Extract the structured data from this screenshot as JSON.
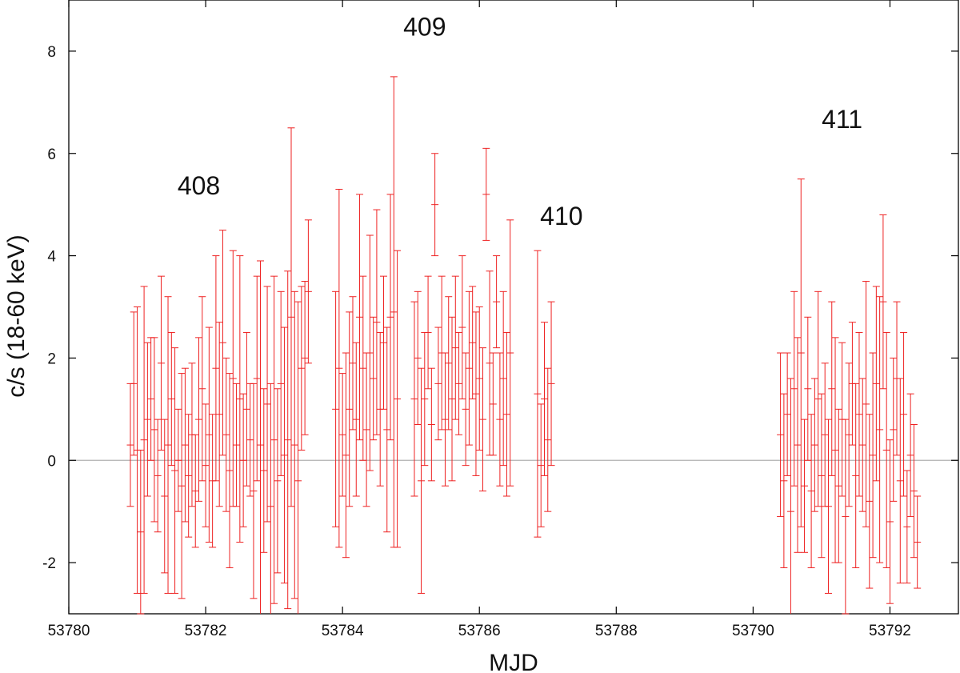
{
  "chart_data": {
    "type": "scatter",
    "xlabel": "MJD",
    "ylabel": "c/s (18-60 keV)",
    "xlim": [
      53780,
      53793
    ],
    "ylim": [
      -3,
      9
    ],
    "x_ticks": [
      "53780",
      "53782",
      "53784",
      "53786",
      "53788",
      "53790",
      "53792"
    ],
    "x_tick_values": [
      53780,
      53782,
      53784,
      53786,
      53788,
      53790,
      53792
    ],
    "y_ticks": [
      "-2",
      "0",
      "2",
      "4",
      "6",
      "8"
    ],
    "y_tick_values": [
      -2,
      0,
      2,
      4,
      6,
      8
    ],
    "reference_line_y": 0,
    "series_color": "#ee2222",
    "annotations": [
      {
        "text": "408",
        "x": 53781.9,
        "y": 5.2
      },
      {
        "text": "409",
        "x": 53785.2,
        "y": 8.3
      },
      {
        "text": "410",
        "x": 53787.2,
        "y": 4.6
      },
      {
        "text": "411",
        "x": 53791.3,
        "y": 6.5
      }
    ],
    "series": [
      {
        "points": [
          {
            "x": 53780.9,
            "y": 0.3,
            "err": 1.2
          },
          {
            "x": 53780.95,
            "y": 1.5,
            "err": 1.4
          },
          {
            "x": 53781.0,
            "y": 0.2,
            "err": 2.8
          },
          {
            "x": 53781.05,
            "y": -1.4,
            "err": 1.6
          },
          {
            "x": 53781.1,
            "y": 0.4,
            "err": 3.0
          },
          {
            "x": 53781.15,
            "y": 0.8,
            "err": 1.5
          },
          {
            "x": 53781.2,
            "y": 1.2,
            "err": 1.2
          },
          {
            "x": 53781.25,
            "y": 0.6,
            "err": 1.8
          },
          {
            "x": 53781.3,
            "y": -0.3,
            "err": 1.1
          },
          {
            "x": 53781.35,
            "y": 1.9,
            "err": 1.7
          },
          {
            "x": 53781.4,
            "y": -0.7,
            "err": 1.5
          },
          {
            "x": 53781.45,
            "y": 0.3,
            "err": 2.9
          },
          {
            "x": 53781.5,
            "y": 1.2,
            "err": 1.3
          },
          {
            "x": 53781.55,
            "y": -0.2,
            "err": 2.4
          },
          {
            "x": 53781.6,
            "y": 0.0,
            "err": 1.0
          },
          {
            "x": 53781.65,
            "y": -0.5,
            "err": 2.2
          },
          {
            "x": 53781.7,
            "y": 0.3,
            "err": 1.5
          },
          {
            "x": 53781.75,
            "y": -0.3,
            "err": 1.2
          },
          {
            "x": 53781.8,
            "y": 0.5,
            "err": 1.4
          },
          {
            "x": 53781.85,
            "y": -0.6,
            "err": 1.1
          },
          {
            "x": 53781.9,
            "y": 0.8,
            "err": 1.6
          },
          {
            "x": 53781.95,
            "y": 1.4,
            "err": 1.8
          },
          {
            "x": 53782.0,
            "y": -0.1,
            "err": 1.2
          },
          {
            "x": 53782.05,
            "y": 0.5,
            "err": 2.1
          },
          {
            "x": 53782.1,
            "y": -0.4,
            "err": 1.3
          },
          {
            "x": 53782.15,
            "y": 1.8,
            "err": 2.2
          },
          {
            "x": 53782.2,
            "y": 0.9,
            "err": 1.8
          },
          {
            "x": 53782.25,
            "y": 2.3,
            "err": 2.2
          },
          {
            "x": 53782.3,
            "y": 0.5,
            "err": 1.5
          },
          {
            "x": 53782.35,
            "y": -0.2,
            "err": 1.9
          },
          {
            "x": 53782.4,
            "y": 1.6,
            "err": 2.5
          },
          {
            "x": 53782.45,
            "y": 0.3,
            "err": 1.2
          },
          {
            "x": 53782.5,
            "y": 1.2,
            "err": 2.8
          },
          {
            "x": 53782.55,
            "y": 0.0,
            "err": 1.3
          },
          {
            "x": 53782.6,
            "y": 1.0,
            "err": 1.5
          },
          {
            "x": 53782.65,
            "y": 0.4,
            "err": 1.1
          },
          {
            "x": 53782.7,
            "y": -0.6,
            "err": 2.1
          },
          {
            "x": 53782.75,
            "y": 1.6,
            "err": 2.0
          },
          {
            "x": 53782.8,
            "y": 0.3,
            "err": 3.6
          },
          {
            "x": 53782.85,
            "y": -0.2,
            "err": 1.6
          },
          {
            "x": 53782.9,
            "y": 1.1,
            "err": 2.3
          },
          {
            "x": 53782.95,
            "y": -0.9,
            "err": 2.4
          },
          {
            "x": 53783.0,
            "y": 0.4,
            "err": 3.2
          },
          {
            "x": 53783.05,
            "y": -0.4,
            "err": 1.8
          },
          {
            "x": 53783.1,
            "y": 1.5,
            "err": 1.8
          },
          {
            "x": 53783.15,
            "y": 0.1,
            "err": 2.5
          },
          {
            "x": 53783.2,
            "y": 0.4,
            "err": 3.3
          },
          {
            "x": 53783.25,
            "y": 2.8,
            "err": 3.7
          },
          {
            "x": 53783.3,
            "y": 0.3,
            "err": 3.0
          },
          {
            "x": 53783.35,
            "y": -0.4,
            "err": 3.5
          },
          {
            "x": 53783.4,
            "y": 1.8,
            "err": 1.6
          },
          {
            "x": 53783.45,
            "y": 2.0,
            "err": 1.5
          },
          {
            "x": 53783.5,
            "y": 3.3,
            "err": 1.4
          },
          {
            "x": 53783.9,
            "y": 1.0,
            "err": 2.3
          },
          {
            "x": 53783.95,
            "y": 1.8,
            "err": 3.5
          },
          {
            "x": 53784.0,
            "y": 0.5,
            "err": 1.2
          },
          {
            "x": 53784.05,
            "y": 0.1,
            "err": 2.0
          },
          {
            "x": 53784.1,
            "y": 1.0,
            "err": 1.9
          },
          {
            "x": 53784.15,
            "y": 1.9,
            "err": 1.3
          },
          {
            "x": 53784.2,
            "y": 0.8,
            "err": 1.5
          },
          {
            "x": 53784.25,
            "y": 2.8,
            "err": 2.4
          },
          {
            "x": 53784.3,
            "y": 1.8,
            "err": 1.8
          },
          {
            "x": 53784.35,
            "y": 0.6,
            "err": 1.5
          },
          {
            "x": 53784.4,
            "y": 2.1,
            "err": 2.3
          },
          {
            "x": 53784.45,
            "y": 1.6,
            "err": 1.2
          },
          {
            "x": 53784.5,
            "y": 2.7,
            "err": 2.2
          },
          {
            "x": 53784.55,
            "y": 1.0,
            "err": 1.5
          },
          {
            "x": 53784.6,
            "y": 2.3,
            "err": 1.3
          },
          {
            "x": 53784.65,
            "y": 0.6,
            "err": 2.0
          },
          {
            "x": 53784.7,
            "y": 2.8,
            "err": 2.4
          },
          {
            "x": 53784.75,
            "y": 2.9,
            "err": 4.6
          },
          {
            "x": 53784.8,
            "y": 1.2,
            "err": 2.9
          },
          {
            "x": 53785.05,
            "y": 1.2,
            "err": 1.9
          },
          {
            "x": 53785.1,
            "y": 2.0,
            "err": 1.3
          },
          {
            "x": 53785.15,
            "y": -0.4,
            "err": 2.2
          },
          {
            "x": 53785.2,
            "y": 1.2,
            "err": 1.3
          },
          {
            "x": 53785.25,
            "y": 2.5,
            "err": 1.1
          },
          {
            "x": 53785.3,
            "y": 0.7,
            "err": 1.1
          },
          {
            "x": 53785.35,
            "y": 5.0,
            "err": 1.0
          },
          {
            "x": 53785.4,
            "y": 1.5,
            "err": 1.1
          },
          {
            "x": 53785.45,
            "y": 2.1,
            "err": 1.5
          },
          {
            "x": 53785.5,
            "y": 0.8,
            "err": 1.3
          },
          {
            "x": 53785.55,
            "y": 1.9,
            "err": 1.3
          },
          {
            "x": 53785.6,
            "y": 1.2,
            "err": 1.6
          },
          {
            "x": 53785.65,
            "y": 2.2,
            "err": 1.4
          },
          {
            "x": 53785.7,
            "y": 1.5,
            "err": 1.0
          },
          {
            "x": 53785.75,
            "y": 2.6,
            "err": 1.4
          },
          {
            "x": 53785.8,
            "y": 1.0,
            "err": 1.1
          },
          {
            "x": 53785.85,
            "y": 1.8,
            "err": 1.5
          },
          {
            "x": 53785.9,
            "y": 2.3,
            "err": 1.1
          },
          {
            "x": 53785.95,
            "y": 1.3,
            "err": 1.6
          },
          {
            "x": 53786.0,
            "y": 1.6,
            "err": 1.4
          },
          {
            "x": 53786.05,
            "y": 0.8,
            "err": 1.4
          },
          {
            "x": 53786.1,
            "y": 5.2,
            "err": 0.9
          },
          {
            "x": 53786.15,
            "y": 1.9,
            "err": 1.8
          },
          {
            "x": 53786.2,
            "y": 1.1,
            "err": 1.0
          },
          {
            "x": 53786.25,
            "y": 3.1,
            "err": 0.9
          },
          {
            "x": 53786.3,
            "y": 0.8,
            "err": 1.3
          },
          {
            "x": 53786.35,
            "y": 1.6,
            "err": 1.7
          },
          {
            "x": 53786.4,
            "y": 0.9,
            "err": 1.6
          },
          {
            "x": 53786.45,
            "y": 2.1,
            "err": 2.6
          },
          {
            "x": 53786.85,
            "y": 1.3,
            "err": 2.8
          },
          {
            "x": 53786.9,
            "y": -0.1,
            "err": 1.2
          },
          {
            "x": 53786.95,
            "y": 1.2,
            "err": 1.5
          },
          {
            "x": 53787.0,
            "y": 0.4,
            "err": 1.4
          },
          {
            "x": 53787.05,
            "y": 1.5,
            "err": 1.6
          },
          {
            "x": 53790.4,
            "y": 0.5,
            "err": 1.6
          },
          {
            "x": 53790.45,
            "y": -0.4,
            "err": 1.7
          },
          {
            "x": 53790.5,
            "y": 0.9,
            "err": 1.2
          },
          {
            "x": 53790.55,
            "y": -1.0,
            "err": 2.6
          },
          {
            "x": 53790.6,
            "y": 1.4,
            "err": 1.9
          },
          {
            "x": 53790.65,
            "y": 0.3,
            "err": 2.1
          },
          {
            "x": 53790.7,
            "y": 2.1,
            "err": 3.4
          },
          {
            "x": 53790.75,
            "y": -0.5,
            "err": 1.3
          },
          {
            "x": 53790.8,
            "y": 1.4,
            "err": 1.4
          },
          {
            "x": 53790.85,
            "y": -0.6,
            "err": 1.5
          },
          {
            "x": 53790.9,
            "y": 0.3,
            "err": 1.3
          },
          {
            "x": 53790.95,
            "y": 1.2,
            "err": 2.1
          },
          {
            "x": 53791.0,
            "y": -0.3,
            "err": 1.6
          },
          {
            "x": 53791.05,
            "y": 0.5,
            "err": 1.4
          },
          {
            "x": 53791.1,
            "y": -0.9,
            "err": 1.7
          },
          {
            "x": 53791.15,
            "y": 1.4,
            "err": 1.7
          },
          {
            "x": 53791.2,
            "y": 0.2,
            "err": 2.2
          },
          {
            "x": 53791.25,
            "y": -0.5,
            "err": 1.5
          },
          {
            "x": 53791.3,
            "y": 0.8,
            "err": 1.5
          },
          {
            "x": 53791.35,
            "y": -1.1,
            "err": 1.9
          },
          {
            "x": 53791.4,
            "y": 0.5,
            "err": 1.4
          },
          {
            "x": 53791.45,
            "y": 1.5,
            "err": 1.2
          },
          {
            "x": 53791.5,
            "y": -0.3,
            "err": 1.8
          },
          {
            "x": 53791.55,
            "y": 0.9,
            "err": 1.6
          },
          {
            "x": 53791.6,
            "y": 0.3,
            "err": 1.3
          },
          {
            "x": 53791.65,
            "y": 1.1,
            "err": 2.4
          },
          {
            "x": 53791.7,
            "y": -0.8,
            "err": 1.7
          },
          {
            "x": 53791.75,
            "y": 0.1,
            "err": 2.0
          },
          {
            "x": 53791.8,
            "y": 1.5,
            "err": 1.9
          },
          {
            "x": 53791.85,
            "y": 0.6,
            "err": 2.6
          },
          {
            "x": 53791.9,
            "y": 3.1,
            "err": 1.7
          },
          {
            "x": 53791.95,
            "y": 0.2,
            "err": 2.3
          },
          {
            "x": 53792.0,
            "y": -1.2,
            "err": 1.6
          },
          {
            "x": 53792.05,
            "y": 0.6,
            "err": 1.4
          },
          {
            "x": 53792.1,
            "y": 1.6,
            "err": 1.5
          },
          {
            "x": 53792.15,
            "y": -0.4,
            "err": 2.0
          },
          {
            "x": 53792.2,
            "y": 0.9,
            "err": 1.6
          },
          {
            "x": 53792.25,
            "y": -1.3,
            "err": 1.1
          },
          {
            "x": 53792.3,
            "y": 0.1,
            "err": 1.2
          },
          {
            "x": 53792.35,
            "y": -0.6,
            "err": 1.3
          },
          {
            "x": 53792.4,
            "y": -1.6,
            "err": 0.9
          }
        ]
      }
    ]
  }
}
